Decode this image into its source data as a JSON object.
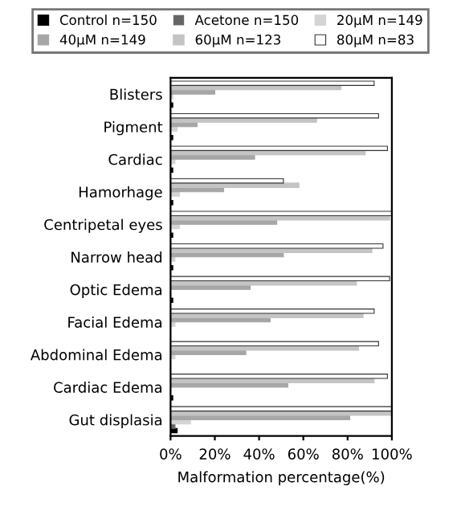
{
  "chart_data": {
    "type": "bar",
    "orientation": "horizontal",
    "xlabel": "Malformation percentage(%)",
    "categories": [
      "Blisters",
      "Pigment",
      "Cardiac",
      "Hamorhage",
      "Centripetal eyes",
      "Narrow head",
      "Optic Edema",
      "Facial Edema",
      "Abdominal Edema",
      "Cardiac Edema",
      "Gut displasia"
    ],
    "series": [
      {
        "name": "Control n=150",
        "color": "#000000",
        "values": [
          1,
          1,
          1,
          1,
          1,
          1,
          1,
          0,
          0,
          1,
          3
        ]
      },
      {
        "name": "Acetone n=150",
        "color": "#666666",
        "values": [
          0,
          0,
          0,
          0,
          0,
          0,
          0,
          0,
          0,
          0,
          2
        ]
      },
      {
        "name": "20μM n=149",
        "color": "#d4d4d4",
        "values": [
          1,
          3,
          2,
          4,
          4,
          2,
          0,
          2,
          2,
          0,
          9
        ]
      },
      {
        "name": "40μM n=149",
        "color": "#a6a6a6",
        "values": [
          20,
          12,
          38,
          24,
          48,
          51,
          36,
          45,
          34,
          53,
          81
        ]
      },
      {
        "name": "60μM n=123",
        "color": "#c4c4c4",
        "values": [
          77,
          66,
          88,
          58,
          99,
          91,
          84,
          87,
          85,
          92,
          100
        ]
      },
      {
        "name": "80μM n=83",
        "color": "#ffffff",
        "values": [
          92,
          94,
          98,
          51,
          100,
          96,
          99,
          92,
          94,
          98,
          100
        ]
      }
    ],
    "xlim": [
      0,
      100
    ],
    "xticks": [
      {
        "value": 0,
        "label": "0%"
      },
      {
        "value": 20,
        "label": "20%"
      },
      {
        "value": 40,
        "label": "40%"
      },
      {
        "value": 60,
        "label": "60%"
      },
      {
        "value": 80,
        "label": "80%"
      },
      {
        "value": 100,
        "label": "100%"
      }
    ],
    "legend": "top",
    "grid": false
  }
}
